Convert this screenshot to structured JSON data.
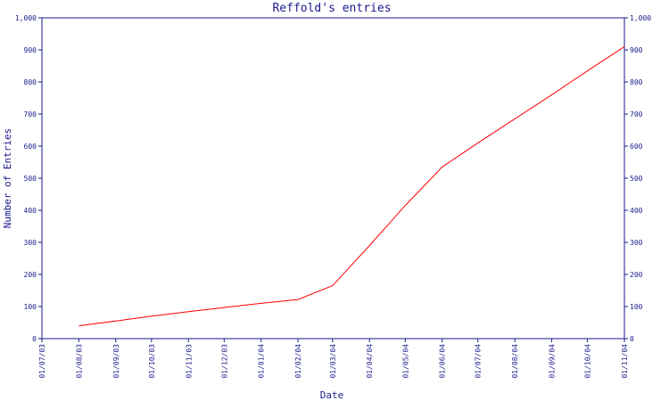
{
  "chart_data": {
    "type": "line",
    "title": "Reffold's entries",
    "xlabel": "Date",
    "ylabel": "Number of Entries",
    "x_ticks": [
      "01/07/03",
      "01/08/03",
      "01/09/03",
      "01/10/03",
      "01/11/03",
      "01/12/03",
      "01/01/04",
      "01/02/04",
      "01/03/04",
      "01/04/04",
      "01/05/04",
      "01/06/04",
      "01/07/04",
      "01/08/04",
      "01/09/04",
      "01/10/04",
      "01/11/04"
    ],
    "y_ticks": [
      "0",
      "100",
      "200",
      "300",
      "400",
      "500",
      "600",
      "700",
      "800",
      "900",
      "1,000"
    ],
    "ylim": [
      0,
      1000
    ],
    "grid": false,
    "series_color": "#ff0000",
    "axis_color": "#1a1a8c",
    "x": [
      "2003-08-01",
      "2003-09-01",
      "2003-10-01",
      "2003-11-01",
      "2003-12-01",
      "2004-01-01",
      "2004-02-01",
      "2004-03-01",
      "2004-04-01",
      "2004-05-01",
      "2004-06-01",
      "2004-07-01",
      "2004-08-01",
      "2004-09-01",
      "2004-10-01",
      "2004-11-01"
    ],
    "values": [
      40,
      55,
      70,
      84,
      97,
      110,
      122,
      165,
      290,
      415,
      535,
      610,
      685,
      760,
      835,
      910
    ]
  }
}
